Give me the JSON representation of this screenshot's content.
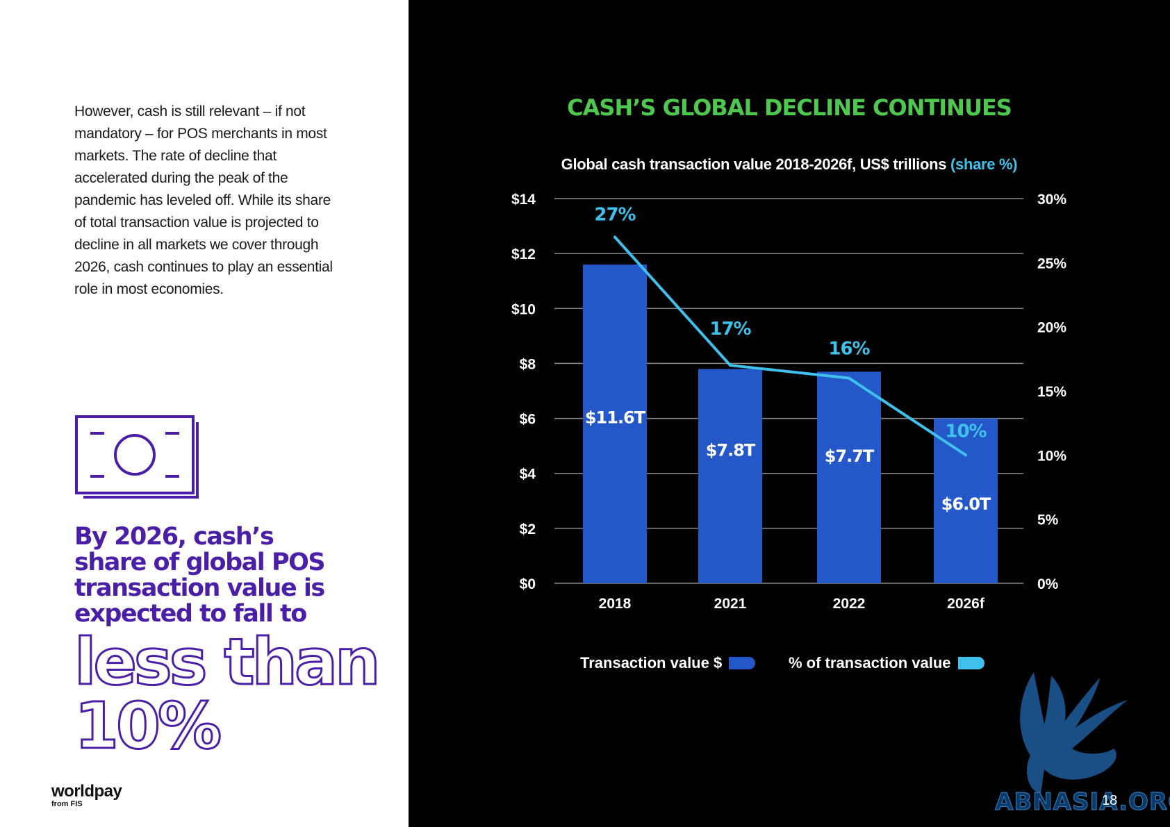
{
  "left": {
    "body_text": "However, cash is still relevant – if not mandatory – for POS merchants in most markets. The rate of decline that accelerated during the peak of the pandemic has leveled off. While its share of total transaction value is projected to decline in all markets we cover through 2026, cash continues to play an essential role in most economies.",
    "icon": "banknote-icon",
    "callout_lines": [
      "By 2026, cash’s",
      "share of global POS",
      "transaction value is",
      "expected to fall to"
    ],
    "callout_big": [
      "less than",
      "10%"
    ],
    "brand": {
      "name": "worldpay",
      "sub": "from FIS"
    }
  },
  "page_number": "18",
  "watermark": {
    "text": "ABNASIA.ORG",
    "icon": "griffin-logo-icon"
  },
  "colors": {
    "bar": "#2458c8",
    "line": "#3fc1ec",
    "title": "#4fc84f",
    "callout": "#4a1ea6"
  },
  "chart_data": {
    "type": "bar",
    "title": "CASH’S GLOBAL DECLINE CONTINUES",
    "subtitle": "Global cash transaction value 2018-2026f, US$ trillions",
    "subtitle_accent": "(share %)",
    "categories": [
      "2018",
      "2021",
      "2022",
      "2026f"
    ],
    "series": [
      {
        "name": "Transaction value $",
        "type": "bar",
        "axis": "left",
        "values": [
          11.6,
          7.8,
          7.7,
          6.0
        ],
        "labels": [
          "$11.6T",
          "$7.8T",
          "$7.7T",
          "$6.0T"
        ]
      },
      {
        "name": "% of transaction value",
        "type": "line",
        "axis": "right",
        "values": [
          27,
          17,
          16,
          10
        ],
        "labels": [
          "27%",
          "17%",
          "16%",
          "10%"
        ]
      }
    ],
    "y_left": {
      "min": 0,
      "max": 14,
      "ticks": [
        "$0",
        "$2",
        "$4",
        "$6",
        "$8",
        "$10",
        "$12",
        "$14"
      ]
    },
    "y_right": {
      "min": 0,
      "max": 30,
      "ticks": [
        "0%",
        "5%",
        "10%",
        "15%",
        "20%",
        "25%",
        "30%"
      ]
    },
    "grid": true,
    "legend_position": "bottom"
  }
}
